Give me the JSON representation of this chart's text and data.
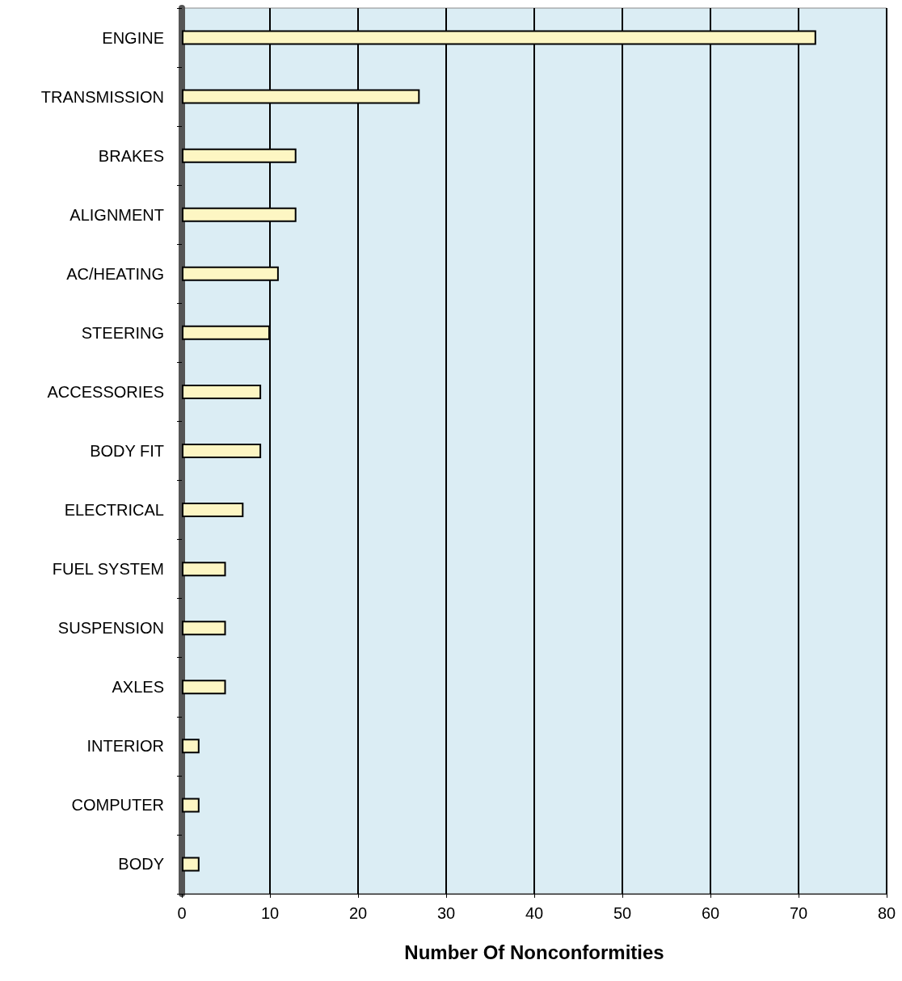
{
  "chart_data": {
    "type": "bar",
    "orientation": "horizontal",
    "xlabel": "Number Of Nonconformities",
    "categories": [
      "ENGINE",
      "TRANSMISSION",
      "BRAKES",
      "ALIGNMENT",
      "AC/HEATING",
      "STEERING",
      "ACCESSORIES",
      "BODY FIT",
      "ELECTRICAL",
      "FUEL SYSTEM",
      "SUSPENSION",
      "AXLES",
      "INTERIOR",
      "COMPUTER",
      "BODY"
    ],
    "values": [
      72,
      27,
      13,
      13,
      11,
      10,
      9,
      9,
      7,
      5,
      5,
      5,
      2,
      2,
      2
    ],
    "color": "#fdf6c3",
    "xlim": [
      0,
      80
    ],
    "xticks": [
      0,
      10,
      20,
      30,
      40,
      50,
      60,
      70,
      80
    ],
    "grid": "x"
  }
}
